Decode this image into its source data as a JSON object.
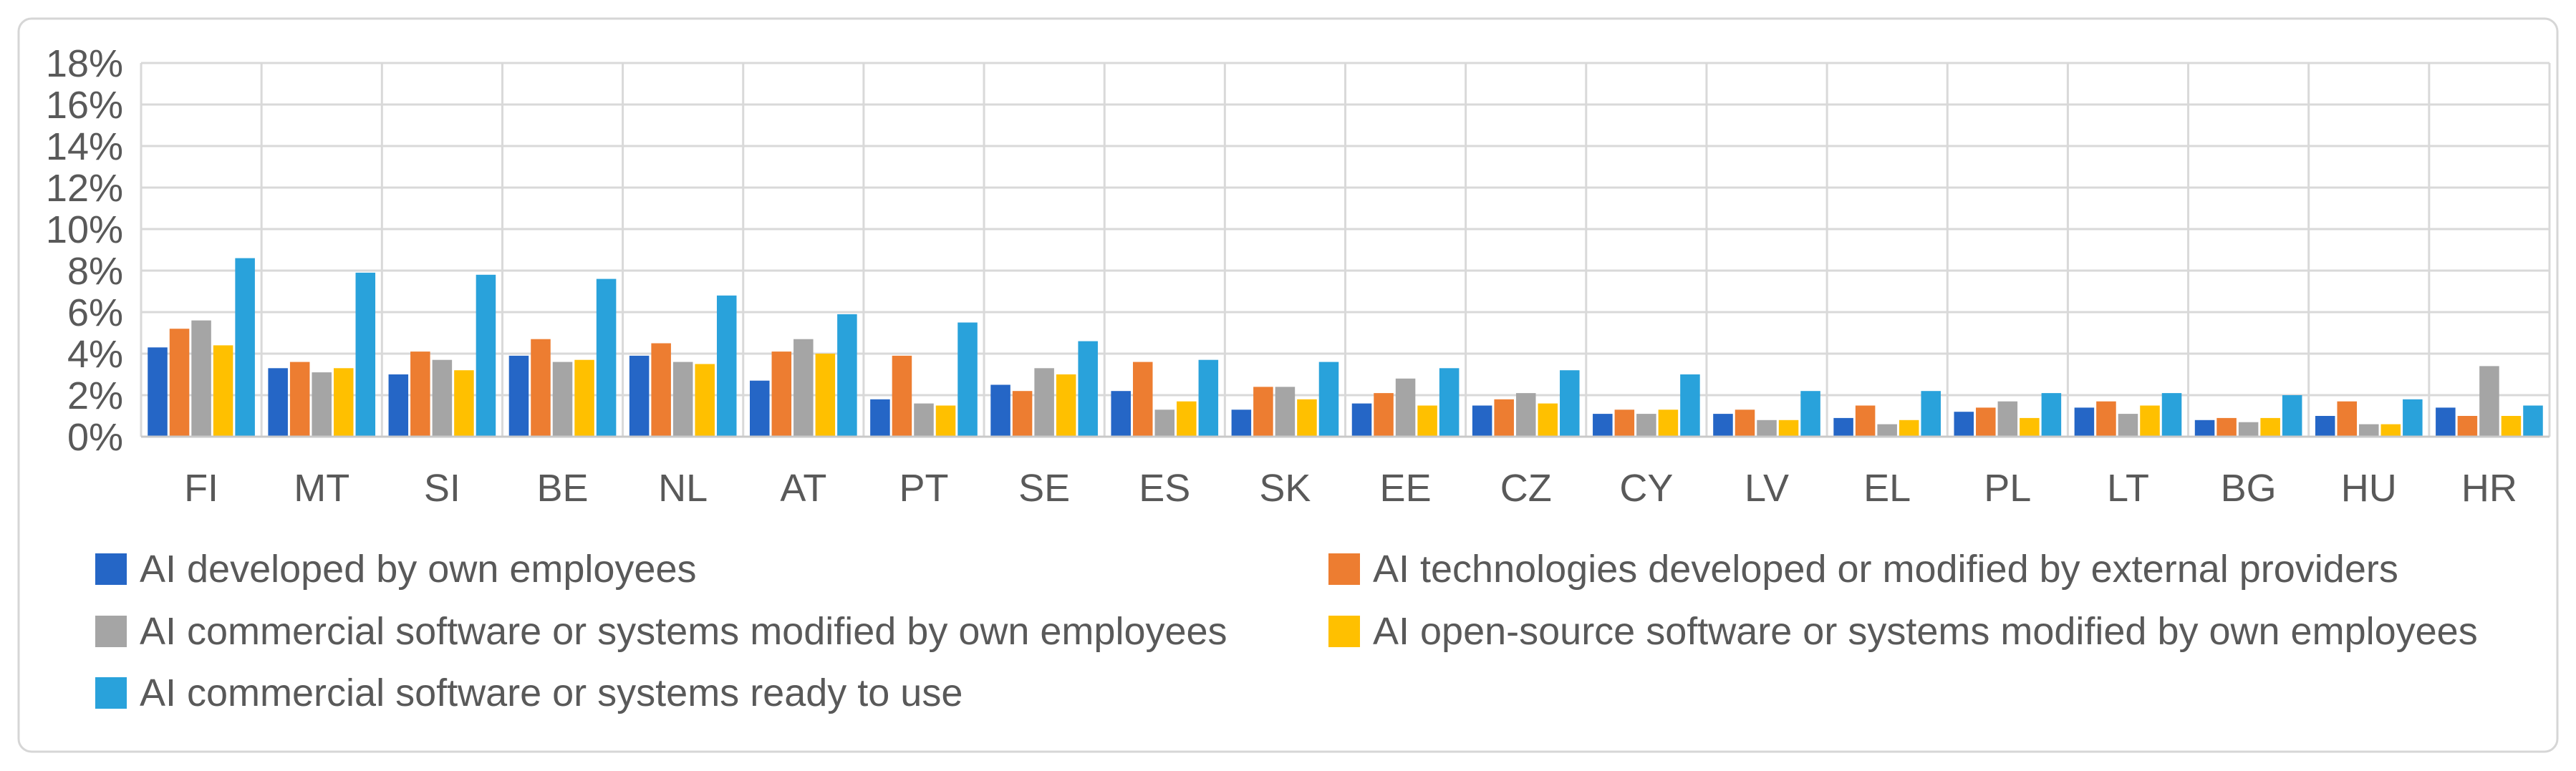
{
  "figure": {
    "background_color": "#ffffff",
    "frame_color": "#d6d6d6"
  },
  "axis": {
    "tick_label_color": "#595959",
    "grid_color": "#d9d9d9",
    "yticks": [
      "18%",
      "16%",
      "14%",
      "12%",
      "10%",
      "8%",
      "6%",
      "4%",
      "2%",
      "0%"
    ]
  },
  "legend": {
    "text_color": "#595959",
    "rows": 3,
    "columns": 2
  },
  "chart_data": {
    "type": "bar",
    "title": "",
    "xlabel": "",
    "ylabel": "",
    "ylim": [
      0,
      18
    ],
    "ytick_step": 2,
    "ytick_format": "percent",
    "grid": true,
    "legend_position": "bottom",
    "categories": [
      "FI",
      "MT",
      "SI",
      "BE",
      "NL",
      "AT",
      "PT",
      "SE",
      "ES",
      "SK",
      "EE",
      "CZ",
      "CY",
      "LV",
      "EL",
      "PL",
      "LT",
      "BG",
      "HU",
      "HR"
    ],
    "series": [
      {
        "name": "AI developed by own employees",
        "color": "#2566c6",
        "values": [
          4.3,
          3.3,
          3.0,
          3.9,
          3.9,
          2.7,
          1.8,
          2.5,
          2.2,
          1.3,
          1.6,
          1.5,
          1.1,
          1.1,
          0.9,
          1.2,
          1.4,
          0.8,
          1.0,
          1.4
        ]
      },
      {
        "name": "AI technologies developed or modified by external providers",
        "color": "#ed7d31",
        "values": [
          5.2,
          3.6,
          4.1,
          4.7,
          4.5,
          4.1,
          3.9,
          2.2,
          3.6,
          2.4,
          2.1,
          1.8,
          1.3,
          1.3,
          1.5,
          1.4,
          1.7,
          0.9,
          1.7,
          1.0
        ]
      },
      {
        "name": "AI commercial software or systems modified by own employees",
        "color": "#a5a5a5",
        "values": [
          5.6,
          3.1,
          3.7,
          3.6,
          3.6,
          4.7,
          1.6,
          3.3,
          1.3,
          2.4,
          2.8,
          2.1,
          1.1,
          0.8,
          0.6,
          1.7,
          1.1,
          0.7,
          0.6,
          3.4
        ]
      },
      {
        "name": "AI open-source software or systems modified by own employees",
        "color": "#ffc000",
        "values": [
          4.4,
          3.3,
          3.2,
          3.7,
          3.5,
          4.0,
          1.5,
          3.0,
          1.7,
          1.8,
          1.5,
          1.6,
          1.3,
          0.8,
          0.8,
          0.9,
          1.5,
          0.9,
          0.6,
          1.0
        ]
      },
      {
        "name": "AI commercial software or systems ready to use",
        "color": "#29a2db",
        "values": [
          8.6,
          7.9,
          7.8,
          7.6,
          6.8,
          5.9,
          5.5,
          4.6,
          3.7,
          3.6,
          3.3,
          3.2,
          3.0,
          2.2,
          2.2,
          2.1,
          2.1,
          2.0,
          1.8,
          1.5
        ]
      }
    ]
  }
}
